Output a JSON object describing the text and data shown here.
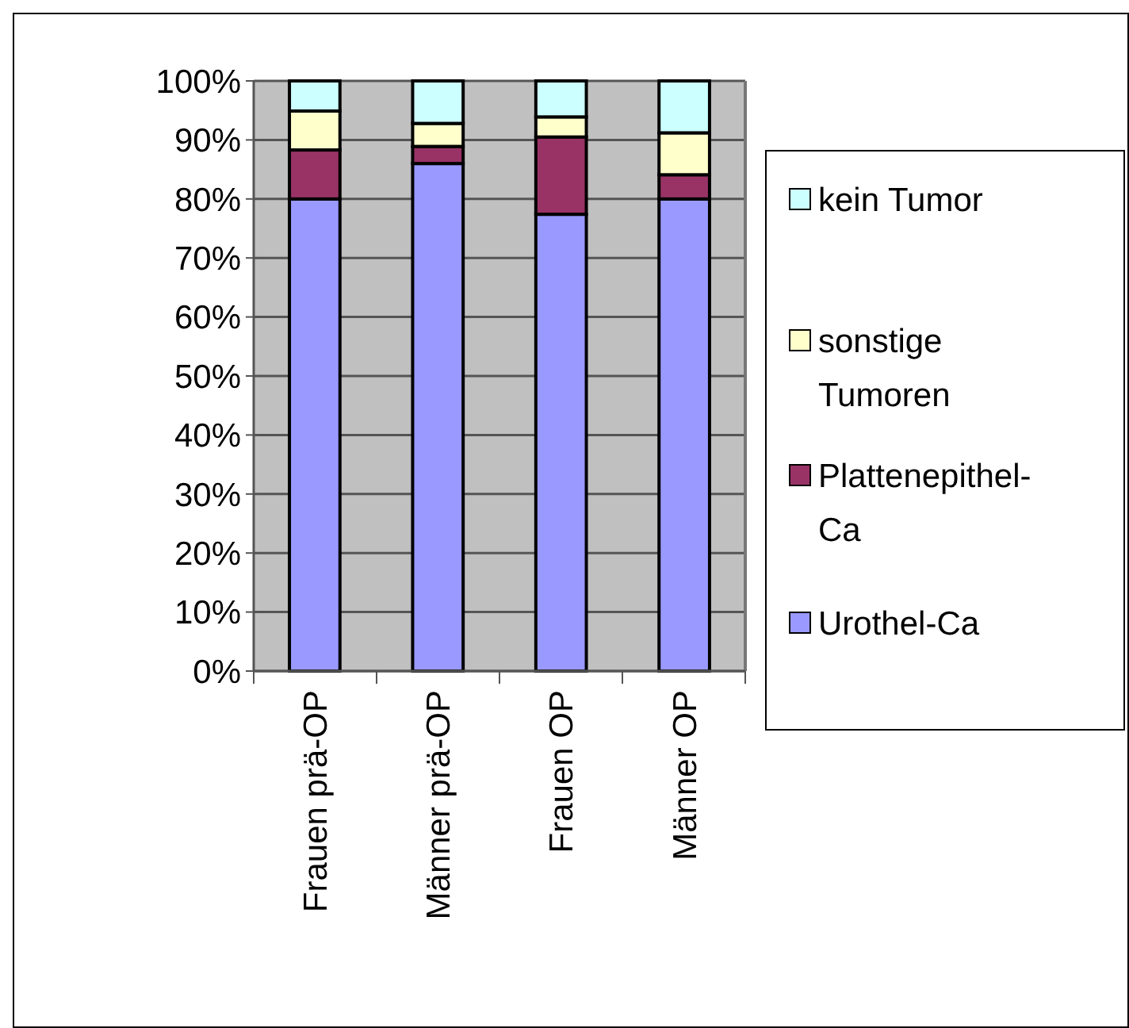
{
  "chart_data": {
    "type": "bar",
    "stacked": true,
    "categories": [
      "Frauen prä-OP",
      "Männer prä-OP",
      "Frauen OP",
      "Männer OP"
    ],
    "series": [
      {
        "name": "Urothel-Ca",
        "color": "#9999ff",
        "values": [
          80,
          86,
          77.4,
          80
        ]
      },
      {
        "name": "Plattenepithel-Ca",
        "color": "#993366",
        "values": [
          8.3,
          2.9,
          13.1,
          4.1
        ]
      },
      {
        "name": "sonstige Tumoren",
        "color": "#ffffcc",
        "values": [
          6.6,
          3.9,
          3.4,
          7.1
        ]
      },
      {
        "name": "kein Tumor",
        "color": "#ccffff",
        "values": [
          5.1,
          7.2,
          6.1,
          8.8
        ]
      }
    ],
    "ylim": [
      0,
      100
    ],
    "yticks": [
      {
        "value": 0,
        "label": "0%"
      },
      {
        "value": 10,
        "label": "10%"
      },
      {
        "value": 20,
        "label": "20%"
      },
      {
        "value": 30,
        "label": "30%"
      },
      {
        "value": 40,
        "label": "40%"
      },
      {
        "value": 50,
        "label": "50%"
      },
      {
        "value": 60,
        "label": "60%"
      },
      {
        "value": 70,
        "label": "70%"
      },
      {
        "value": 80,
        "label": "80%"
      },
      {
        "value": 90,
        "label": "90%"
      },
      {
        "value": 100,
        "label": "100%"
      }
    ],
    "grid": "y",
    "legend": "right"
  }
}
